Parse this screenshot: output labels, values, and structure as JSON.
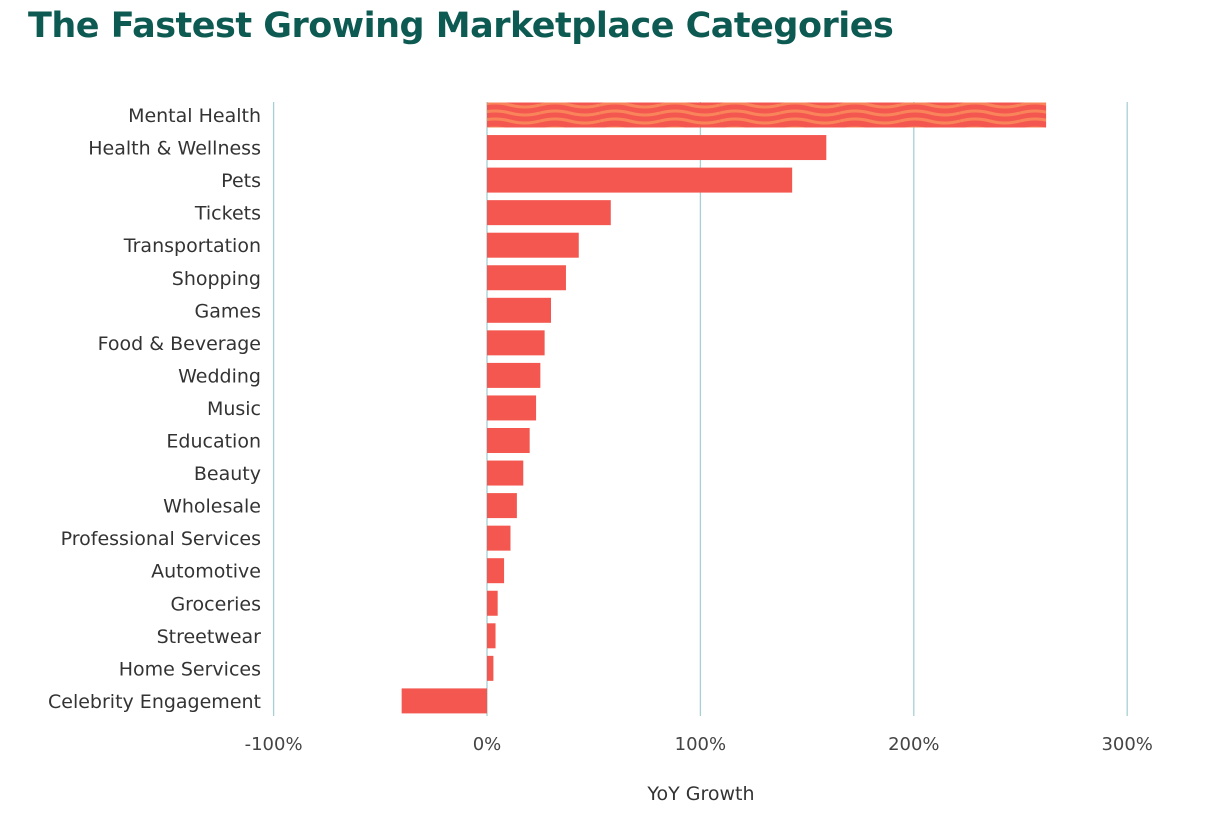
{
  "title": "The Fastest Growing Marketplace Categories",
  "colors": {
    "title": "#0d5a52",
    "bar": "#f4574f",
    "bar_highlight_pattern": "#f9845a",
    "gridline": "#a8d0d2",
    "label_text": "#333333"
  },
  "chart_data": {
    "type": "bar",
    "orientation": "horizontal",
    "title": "The Fastest Growing Marketplace Categories",
    "xlabel": "YoY Growth",
    "ylabel": "",
    "xlim": [
      -100,
      300
    ],
    "x_ticks": [
      -100,
      0,
      100,
      200,
      300
    ],
    "x_tick_labels": [
      "-100%",
      "0%",
      "100%",
      "200%",
      "300%"
    ],
    "grid": true,
    "categories": [
      "Mental Health",
      "Health & Wellness",
      "Pets",
      "Tickets",
      "Transportation",
      "Shopping",
      "Games",
      "Food & Beverage",
      "Wedding",
      "Music",
      "Education",
      "Beauty",
      "Wholesale",
      "Professional Services",
      "Automotive",
      "Groceries",
      "Streetwear",
      "Home Services",
      "Celebrity Engagement"
    ],
    "values": [
      262,
      159,
      143,
      58,
      43,
      37,
      30,
      27,
      25,
      23,
      20,
      17,
      14,
      11,
      8,
      5,
      4,
      3,
      -40
    ],
    "highlight_index": 0
  }
}
